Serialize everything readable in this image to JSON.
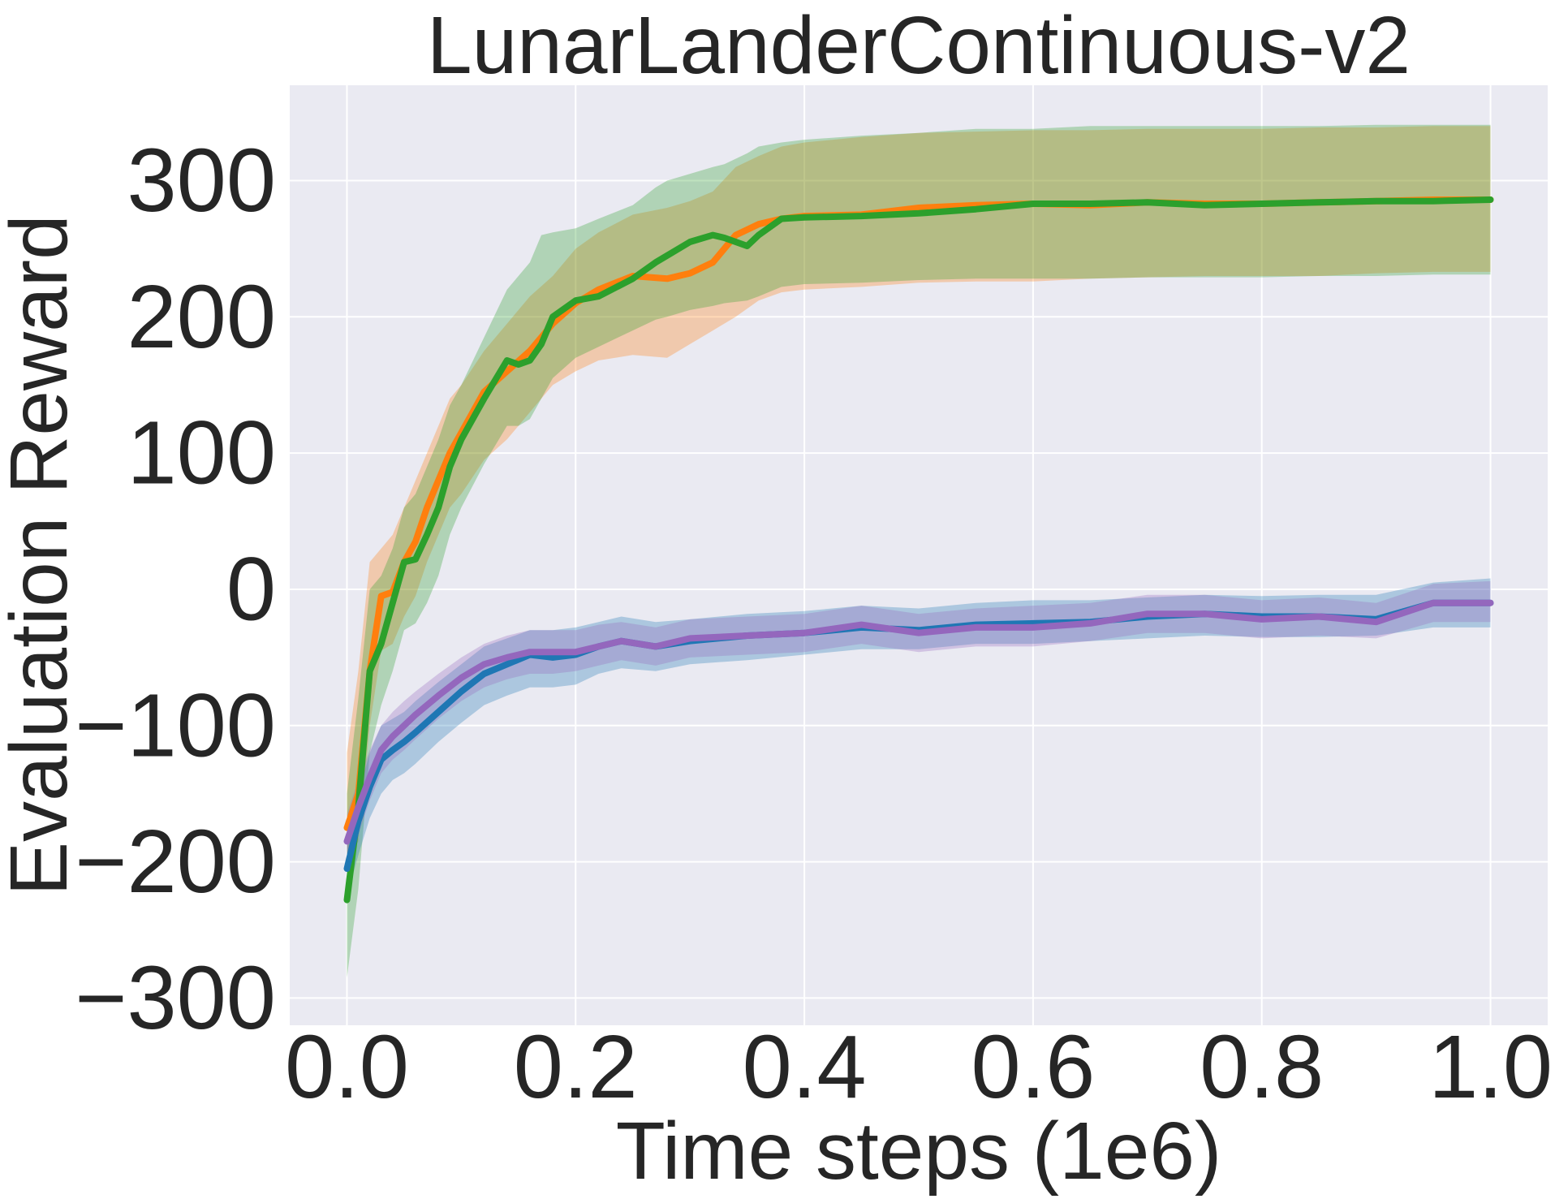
{
  "chart_data": {
    "type": "line",
    "title": "LunarLanderContinuous-v2",
    "xlabel": "Time steps (1e6)",
    "ylabel": "Evaluation Reward",
    "xlim": [
      -0.05,
      1.05
    ],
    "ylim": [
      -320,
      370
    ],
    "xticks": [
      0.0,
      0.2,
      0.4,
      0.6,
      0.8,
      1.0
    ],
    "xtick_labels": [
      "0.0",
      "0.2",
      "0.4",
      "0.6",
      "0.8",
      "1.0"
    ],
    "yticks": [
      -300,
      -200,
      -100,
      0,
      100,
      200,
      300
    ],
    "ytick_labels": [
      "−300",
      "−200",
      "−100",
      "0",
      "100",
      "200",
      "300"
    ],
    "grid": true,
    "background": "#eaeaf2",
    "series": [
      {
        "color": "#ff7f0e",
        "x": [
          0,
          0.01,
          0.02,
          0.03,
          0.04,
          0.05,
          0.06,
          0.07,
          0.08,
          0.09,
          0.1,
          0.12,
          0.14,
          0.16,
          0.18,
          0.2,
          0.22,
          0.25,
          0.28,
          0.3,
          0.32,
          0.34,
          0.36,
          0.38,
          0.4,
          0.45,
          0.5,
          0.55,
          0.6,
          0.65,
          0.7,
          0.75,
          0.8,
          0.85,
          0.9,
          0.95,
          1.0
        ],
        "y": [
          -175,
          -150,
          -60,
          -5,
          -2,
          20,
          35,
          60,
          80,
          100,
          115,
          145,
          160,
          175,
          195,
          210,
          220,
          230,
          228,
          232,
          240,
          260,
          268,
          272,
          274,
          275,
          280,
          282,
          283,
          282,
          284,
          283,
          283,
          284,
          285,
          286,
          286
        ],
        "lower": [
          -200,
          -185,
          -100,
          -45,
          -40,
          -20,
          -5,
          20,
          40,
          60,
          70,
          95,
          110,
          130,
          150,
          160,
          168,
          172,
          170,
          180,
          190,
          200,
          212,
          218,
          220,
          222,
          225,
          226,
          226,
          228,
          229,
          230,
          230,
          230,
          232,
          233,
          233
        ],
        "upper": [
          -120,
          -60,
          20,
          30,
          40,
          60,
          80,
          100,
          120,
          140,
          150,
          175,
          195,
          215,
          230,
          250,
          262,
          275,
          280,
          285,
          292,
          310,
          318,
          325,
          328,
          332,
          335,
          336,
          337,
          337,
          338,
          338,
          338,
          339,
          339,
          340,
          340
        ]
      },
      {
        "color": "#2ca02c",
        "x": [
          0,
          0.01,
          0.02,
          0.03,
          0.04,
          0.05,
          0.06,
          0.07,
          0.08,
          0.09,
          0.1,
          0.12,
          0.14,
          0.15,
          0.16,
          0.17,
          0.18,
          0.2,
          0.22,
          0.25,
          0.27,
          0.28,
          0.3,
          0.32,
          0.33,
          0.35,
          0.36,
          0.38,
          0.4,
          0.45,
          0.5,
          0.55,
          0.6,
          0.65,
          0.7,
          0.75,
          0.8,
          0.85,
          0.9,
          0.95,
          1.0
        ],
        "y": [
          -228,
          -160,
          -60,
          -40,
          -10,
          20,
          22,
          40,
          60,
          90,
          110,
          140,
          168,
          165,
          168,
          180,
          200,
          212,
          215,
          228,
          240,
          245,
          255,
          260,
          258,
          252,
          260,
          272,
          273,
          274,
          276,
          279,
          283,
          283,
          284,
          282,
          283,
          284,
          285,
          285,
          286
        ],
        "lower": [
          -285,
          -220,
          -120,
          -85,
          -60,
          -30,
          -25,
          -10,
          10,
          40,
          60,
          92,
          120,
          120,
          125,
          140,
          155,
          170,
          178,
          190,
          198,
          200,
          205,
          208,
          210,
          212,
          215,
          222,
          224,
          225,
          227,
          228,
          228,
          228,
          229,
          229,
          229,
          230,
          230,
          231,
          231
        ],
        "upper": [
          -150,
          -80,
          0,
          10,
          30,
          60,
          70,
          90,
          110,
          135,
          150,
          185,
          220,
          230,
          240,
          260,
          262,
          265,
          272,
          282,
          295,
          300,
          305,
          310,
          312,
          320,
          325,
          328,
          330,
          333,
          335,
          338,
          338,
          340,
          340,
          340,
          340,
          340,
          341,
          341,
          341
        ]
      },
      {
        "color": "#1f77b4",
        "x": [
          0,
          0.01,
          0.02,
          0.03,
          0.04,
          0.05,
          0.06,
          0.08,
          0.1,
          0.12,
          0.14,
          0.16,
          0.18,
          0.2,
          0.22,
          0.24,
          0.27,
          0.3,
          0.35,
          0.4,
          0.45,
          0.5,
          0.55,
          0.6,
          0.65,
          0.7,
          0.75,
          0.8,
          0.85,
          0.9,
          0.95,
          1.0
        ],
        "y": [
          -205,
          -170,
          -145,
          -125,
          -118,
          -112,
          -105,
          -90,
          -75,
          -62,
          -55,
          -48,
          -50,
          -48,
          -42,
          -38,
          -42,
          -38,
          -34,
          -32,
          -28,
          -30,
          -26,
          -25,
          -24,
          -20,
          -18,
          -20,
          -20,
          -22,
          -10,
          -10
        ],
        "lower": [
          -225,
          -195,
          -168,
          -150,
          -140,
          -135,
          -128,
          -112,
          -98,
          -85,
          -78,
          -72,
          -72,
          -70,
          -62,
          -58,
          -60,
          -55,
          -52,
          -48,
          -44,
          -44,
          -40,
          -40,
          -38,
          -36,
          -34,
          -35,
          -35,
          -34,
          -28,
          -28
        ],
        "upper": [
          -185,
          -150,
          -120,
          -100,
          -95,
          -90,
          -82,
          -68,
          -55,
          -42,
          -36,
          -30,
          -30,
          -28,
          -24,
          -20,
          -24,
          -22,
          -18,
          -16,
          -12,
          -14,
          -10,
          -8,
          -8,
          -6,
          -4,
          -5,
          -4,
          -4,
          5,
          8
        ]
      },
      {
        "color": "#9467bd",
        "x": [
          0,
          0.01,
          0.02,
          0.03,
          0.04,
          0.05,
          0.06,
          0.08,
          0.1,
          0.12,
          0.14,
          0.16,
          0.18,
          0.2,
          0.22,
          0.24,
          0.27,
          0.3,
          0.35,
          0.4,
          0.45,
          0.5,
          0.55,
          0.6,
          0.65,
          0.7,
          0.75,
          0.8,
          0.85,
          0.9,
          0.95,
          1.0
        ],
        "y": [
          -185,
          -160,
          -138,
          -118,
          -108,
          -100,
          -92,
          -78,
          -65,
          -55,
          -50,
          -46,
          -46,
          -46,
          -42,
          -38,
          -42,
          -36,
          -34,
          -32,
          -26,
          -32,
          -28,
          -28,
          -25,
          -18,
          -18,
          -22,
          -20,
          -24,
          -10,
          -10
        ],
        "lower": [
          -200,
          -180,
          -155,
          -135,
          -125,
          -118,
          -110,
          -95,
          -82,
          -72,
          -66,
          -62,
          -62,
          -60,
          -56,
          -52,
          -56,
          -50,
          -48,
          -46,
          -40,
          -46,
          -42,
          -42,
          -38,
          -32,
          -32,
          -36,
          -34,
          -36,
          -24,
          -24
        ],
        "upper": [
          -165,
          -140,
          -118,
          -100,
          -90,
          -82,
          -75,
          -62,
          -50,
          -40,
          -34,
          -30,
          -30,
          -30,
          -26,
          -24,
          -28,
          -22,
          -20,
          -18,
          -12,
          -18,
          -14,
          -12,
          -10,
          -4,
          -4,
          -8,
          -6,
          -10,
          4,
          6
        ]
      }
    ]
  }
}
